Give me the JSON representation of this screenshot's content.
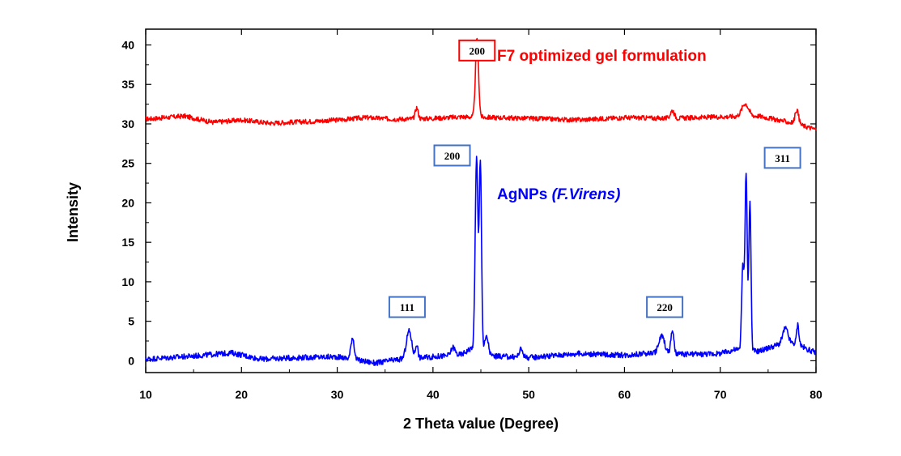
{
  "chart_data": {
    "type": "line",
    "xlabel": "2 Theta value (Degree)",
    "ylabel": "Intensity",
    "xlim": [
      10,
      80
    ],
    "ylim": [
      -1.5,
      42
    ],
    "xticks": [
      10,
      20,
      30,
      40,
      50,
      60,
      70,
      80
    ],
    "yticks": [
      0,
      5,
      10,
      15,
      20,
      25,
      30,
      35,
      40
    ],
    "grid": false,
    "series": [
      {
        "name": "F7 optimized gel formulation",
        "color": "#ff0000",
        "baseline": 30.6,
        "noise": 0.3,
        "points": [
          [
            10,
            30.6
          ],
          [
            14,
            31.0
          ],
          [
            17,
            30.2
          ],
          [
            20,
            30.5
          ],
          [
            23,
            30.1
          ],
          [
            27,
            30.3
          ],
          [
            30,
            30.5
          ],
          [
            33,
            30.8
          ],
          [
            36,
            30.6
          ],
          [
            40,
            30.7
          ],
          [
            43,
            30.9
          ],
          [
            50,
            30.7
          ],
          [
            55,
            30.5
          ],
          [
            60,
            30.8
          ],
          [
            65,
            30.7
          ],
          [
            70,
            30.9
          ],
          [
            74,
            31.0
          ],
          [
            76,
            30.5
          ],
          [
            78,
            30.0
          ],
          [
            80,
            29.3
          ]
        ],
        "peaks": [
          [
            38.3,
            1.4,
            0.15
          ],
          [
            44.6,
            10.0,
            0.16
          ],
          [
            65.0,
            1.0,
            0.2
          ],
          [
            72.6,
            1.6,
            0.35
          ],
          [
            78.0,
            1.8,
            0.18
          ]
        ],
        "label": "F7 optimized gel formulation",
        "label_style": "normal"
      },
      {
        "name": "AgNPs (F.Virens)",
        "color": "#0000ff",
        "baseline": 0.3,
        "noise": 0.35,
        "points": [
          [
            10,
            0.2
          ],
          [
            15,
            0.6
          ],
          [
            19,
            1.0
          ],
          [
            22,
            0.2
          ],
          [
            26,
            0.4
          ],
          [
            30,
            0.5
          ],
          [
            34,
            -0.3
          ],
          [
            36,
            0.1
          ],
          [
            40,
            0.5
          ],
          [
            43,
            0.8
          ],
          [
            44,
            1.6
          ],
          [
            46,
            0.6
          ],
          [
            50,
            0.4
          ],
          [
            55,
            0.9
          ],
          [
            60,
            0.7
          ],
          [
            63,
            1.0
          ],
          [
            66,
            0.8
          ],
          [
            70,
            0.9
          ],
          [
            71.5,
            1.4
          ],
          [
            74,
            1.2
          ],
          [
            76,
            2.0
          ],
          [
            78,
            2.2
          ],
          [
            79,
            1.5
          ],
          [
            80,
            1.0
          ]
        ],
        "peaks": [
          [
            31.6,
            2.8,
            0.17
          ],
          [
            37.5,
            3.5,
            0.28
          ],
          [
            38.3,
            1.8,
            0.12
          ],
          [
            42.1,
            1.0,
            0.2
          ],
          [
            44.55,
            24.5,
            0.14
          ],
          [
            44.95,
            24.0,
            0.12
          ],
          [
            45.6,
            2.2,
            0.2
          ],
          [
            49.2,
            1.0,
            0.2
          ],
          [
            63.9,
            2.2,
            0.3
          ],
          [
            65.0,
            3.0,
            0.15
          ],
          [
            72.35,
            10.5,
            0.12
          ],
          [
            72.7,
            22.5,
            0.12
          ],
          [
            73.1,
            19.0,
            0.11
          ],
          [
            76.8,
            2.0,
            0.28
          ],
          [
            78.1,
            2.4,
            0.12
          ]
        ],
        "label": "AgNPs",
        "label_italic": "(F.Virens)"
      }
    ],
    "annotations": [
      {
        "text": "200",
        "x": 44.6,
        "y": 39.3,
        "border": "#ff0000"
      },
      {
        "text": "200",
        "x": 42.0,
        "y": 26.0,
        "border": "#4472c4"
      },
      {
        "text": "311",
        "x": 76.5,
        "y": 25.7,
        "border": "#4472c4"
      },
      {
        "text": "111",
        "x": 37.3,
        "y": 6.8,
        "border": "#4472c4"
      },
      {
        "text": "220",
        "x": 64.2,
        "y": 6.8,
        "border": "#4472c4"
      }
    ]
  }
}
